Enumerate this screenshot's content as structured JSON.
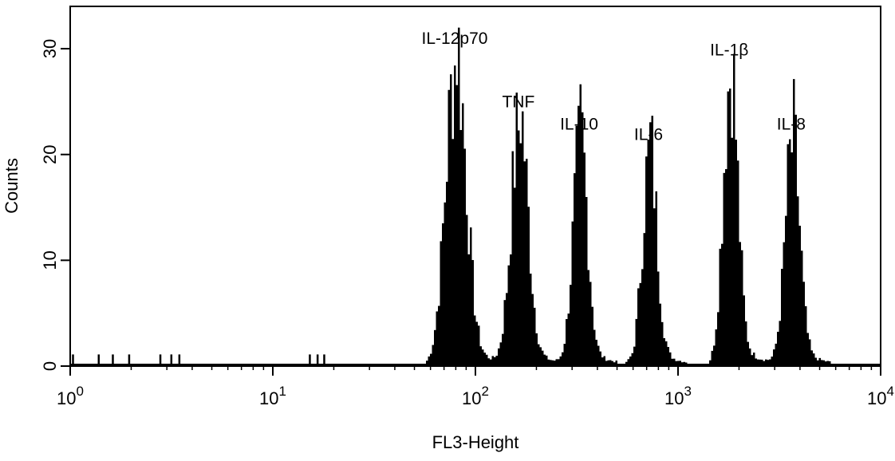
{
  "chart_data": {
    "type": "histogram",
    "xlabel": "FL3-Height",
    "ylabel": "Counts",
    "x_scale": "log",
    "xlim": [
      1,
      10000
    ],
    "ylim": [
      0,
      34
    ],
    "grid": false,
    "x_ticks": [
      {
        "value": 1,
        "base": "10",
        "exp": "0"
      },
      {
        "value": 10,
        "base": "10",
        "exp": "1"
      },
      {
        "value": 100,
        "base": "10",
        "exp": "2"
      },
      {
        "value": 1000,
        "base": "10",
        "exp": "3"
      },
      {
        "value": 10000,
        "base": "10",
        "exp": "4"
      }
    ],
    "y_ticks": [
      {
        "value": 0,
        "label": "0"
      },
      {
        "value": 10,
        "label": "10"
      },
      {
        "value": 20,
        "label": "20"
      },
      {
        "value": 30,
        "label": "30"
      }
    ],
    "peaks": [
      {
        "label": "IL-12p70",
        "center": 79,
        "height": 29.4,
        "width": 0.05
      },
      {
        "label": "TNF",
        "center": 163,
        "height": 23.4,
        "width": 0.042
      },
      {
        "label": "IL-10",
        "center": 325,
        "height": 21.3,
        "width": 0.036
      },
      {
        "label": "IL-6",
        "center": 715,
        "height": 20.3,
        "width": 0.036
      },
      {
        "label": "IL-1β",
        "center": 1790,
        "height": 28.3,
        "width": 0.036
      },
      {
        "label": "IL-8",
        "center": 3620,
        "height": 21.3,
        "width": 0.036
      }
    ],
    "background_events": [
      1.03,
      1.38,
      1.62,
      1.95,
      2.78,
      3.15,
      3.45,
      15.2,
      16.6,
      17.9
    ]
  }
}
